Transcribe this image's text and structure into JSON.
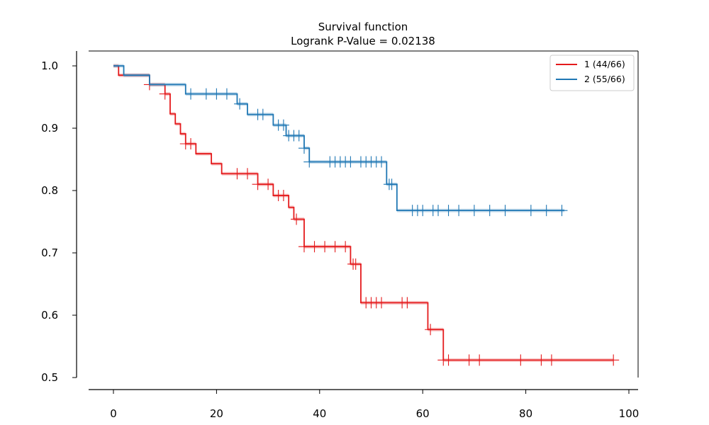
{
  "chart_data": {
    "type": "line",
    "title": "Survival function",
    "subtitle": "Logrank P-Value = 0.02138",
    "xlabel": "",
    "ylabel": "",
    "xlim": [
      -5,
      102
    ],
    "ylim": [
      0.49,
      1.024
    ],
    "x_ticks": [
      0,
      20,
      40,
      60,
      80,
      100
    ],
    "y_ticks": [
      0.5,
      0.6,
      0.7,
      0.8,
      0.9,
      1.0
    ],
    "x_tick_labels": [
      "0",
      "20",
      "40",
      "60",
      "80",
      "100"
    ],
    "y_tick_labels": [
      "0.5",
      "0.6",
      "0.7",
      "0.8",
      "0.9",
      "1.0"
    ],
    "grid": false,
    "legend_position": "top-right",
    "series": [
      {
        "name": "1 (44/66)",
        "color": "#e41a1c",
        "steps": [
          [
            0,
            1.0
          ],
          [
            1,
            0.985
          ],
          [
            7,
            0.97
          ],
          [
            10,
            0.955
          ],
          [
            11,
            0.923
          ],
          [
            12,
            0.907
          ],
          [
            13,
            0.891
          ],
          [
            14,
            0.875
          ],
          [
            16,
            0.859
          ],
          [
            19,
            0.843
          ],
          [
            21,
            0.827
          ],
          [
            28,
            0.81
          ],
          [
            31,
            0.792
          ],
          [
            34,
            0.773
          ],
          [
            35,
            0.754
          ],
          [
            37,
            0.71
          ],
          [
            46,
            0.682
          ],
          [
            48,
            0.62
          ],
          [
            61,
            0.577
          ],
          [
            64,
            0.528
          ],
          [
            97,
            0.528
          ]
        ],
        "censored": [
          [
            7,
            0.97
          ],
          [
            10,
            0.955
          ],
          [
            14,
            0.875
          ],
          [
            15,
            0.875
          ],
          [
            24,
            0.827
          ],
          [
            26,
            0.827
          ],
          [
            28,
            0.81
          ],
          [
            30,
            0.81
          ],
          [
            32,
            0.792
          ],
          [
            33,
            0.792
          ],
          [
            35.5,
            0.754
          ],
          [
            37,
            0.71
          ],
          [
            39,
            0.71
          ],
          [
            41,
            0.71
          ],
          [
            43,
            0.71
          ],
          [
            45,
            0.71
          ],
          [
            46.5,
            0.682
          ],
          [
            47,
            0.682
          ],
          [
            49,
            0.62
          ],
          [
            50,
            0.62
          ],
          [
            51,
            0.62
          ],
          [
            52,
            0.62
          ],
          [
            56,
            0.62
          ],
          [
            57,
            0.62
          ],
          [
            61.5,
            0.577
          ],
          [
            64,
            0.528
          ],
          [
            65,
            0.528
          ],
          [
            69,
            0.528
          ],
          [
            71,
            0.528
          ],
          [
            79,
            0.528
          ],
          [
            83,
            0.528
          ],
          [
            85,
            0.528
          ],
          [
            97,
            0.528
          ]
        ]
      },
      {
        "name": "2 (55/66)",
        "color": "#1f77b4",
        "steps": [
          [
            0,
            1.0
          ],
          [
            2,
            0.985
          ],
          [
            7,
            0.97
          ],
          [
            14,
            0.955
          ],
          [
            24,
            0.939
          ],
          [
            26,
            0.922
          ],
          [
            31,
            0.905
          ],
          [
            33.5,
            0.888
          ],
          [
            37,
            0.868
          ],
          [
            38,
            0.846
          ],
          [
            53,
            0.81
          ],
          [
            55,
            0.768
          ],
          [
            87.5,
            0.768
          ]
        ],
        "censored": [
          [
            15,
            0.955
          ],
          [
            18,
            0.955
          ],
          [
            20,
            0.955
          ],
          [
            22,
            0.955
          ],
          [
            24.5,
            0.939
          ],
          [
            28,
            0.922
          ],
          [
            29,
            0.922
          ],
          [
            32,
            0.905
          ],
          [
            33,
            0.905
          ],
          [
            34,
            0.888
          ],
          [
            35,
            0.888
          ],
          [
            36,
            0.888
          ],
          [
            37,
            0.868
          ],
          [
            38,
            0.846
          ],
          [
            42,
            0.846
          ],
          [
            43,
            0.846
          ],
          [
            44,
            0.846
          ],
          [
            45,
            0.846
          ],
          [
            46,
            0.846
          ],
          [
            48,
            0.846
          ],
          [
            49,
            0.846
          ],
          [
            50,
            0.846
          ],
          [
            51,
            0.846
          ],
          [
            52,
            0.846
          ],
          [
            53.5,
            0.81
          ],
          [
            54,
            0.81
          ],
          [
            58,
            0.768
          ],
          [
            59,
            0.768
          ],
          [
            60,
            0.768
          ],
          [
            62,
            0.768
          ],
          [
            63,
            0.768
          ],
          [
            65,
            0.768
          ],
          [
            67,
            0.768
          ],
          [
            70,
            0.768
          ],
          [
            73,
            0.768
          ],
          [
            76,
            0.768
          ],
          [
            81,
            0.768
          ],
          [
            84,
            0.768
          ],
          [
            87,
            0.768
          ]
        ]
      }
    ]
  }
}
